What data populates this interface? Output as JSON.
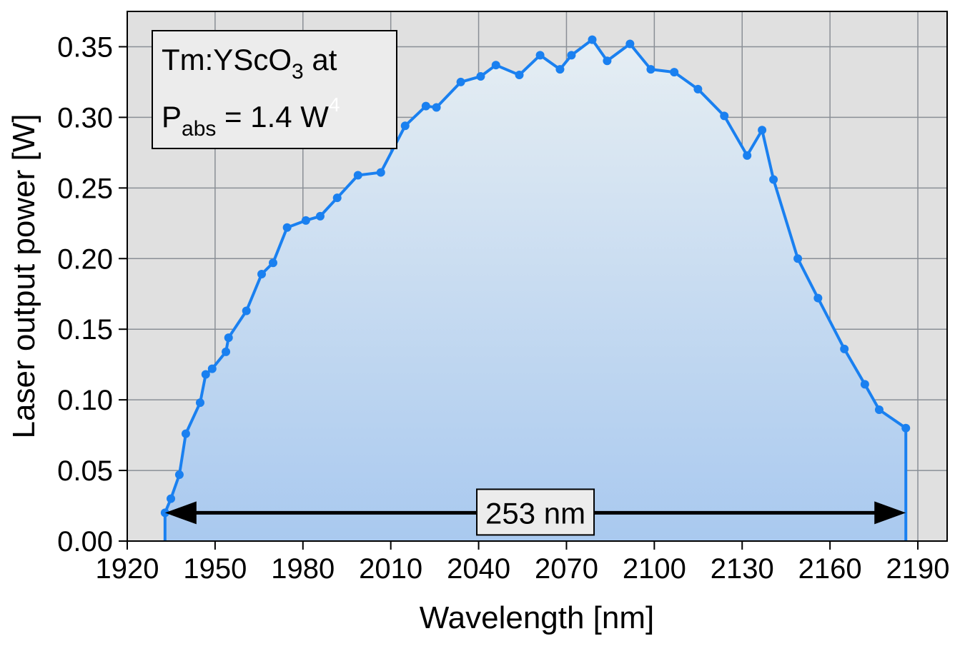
{
  "chart_data": {
    "type": "line",
    "xlabel": "Wavelength [nm]",
    "ylabel": "Laser output power [W]",
    "xlim": [
      1920,
      2200
    ],
    "ylim": [
      0,
      0.375
    ],
    "xticks": [
      1920,
      1950,
      1980,
      2010,
      2040,
      2070,
      2100,
      2130,
      2160,
      2190
    ],
    "yticks": [
      {
        "value": 0,
        "label": "0.00"
      },
      {
        "value": 0.05,
        "label": "0.05"
      },
      {
        "value": 0.1,
        "label": "0.10"
      },
      {
        "value": 0.15,
        "label": "0.15"
      },
      {
        "value": 0.2,
        "label": "0.20"
      },
      {
        "value": 0.25,
        "label": "0.25"
      },
      {
        "value": 0.3,
        "label": "0.30"
      },
      {
        "value": 0.35,
        "label": "0.35"
      }
    ],
    "grid": true,
    "x": [
      1932.9,
      1934.9,
      1937.8,
      1940.0,
      1944.9,
      1946.8,
      1949.0,
      1953.7,
      1954.6,
      1960.7,
      1965.9,
      1969.8,
      1974.6,
      1981.0,
      1985.9,
      1991.7,
      1998.8,
      2006.6,
      2014.9,
      2022.0,
      2025.6,
      2033.9,
      2040.7,
      2045.9,
      2053.9,
      2061.0,
      2067.8,
      2071.7,
      2078.8,
      2083.9,
      2091.7,
      2098.8,
      2106.8,
      2114.9,
      2123.9,
      2131.7,
      2136.8,
      2140.7,
      2149.0,
      2155.9,
      2164.9,
      2171.9,
      2176.8,
      2185.9
    ],
    "series": [
      {
        "color": "#1a80f0",
        "values": [
          0.02,
          0.03,
          0.047,
          0.076,
          0.098,
          0.118,
          0.122,
          0.134,
          0.144,
          0.163,
          0.189,
          0.197,
          0.222,
          0.227,
          0.23,
          0.243,
          0.259,
          0.261,
          0.294,
          0.308,
          0.307,
          0.325,
          0.329,
          0.337,
          0.33,
          0.344,
          0.334,
          0.344,
          0.355,
          0.34,
          0.352,
          0.334,
          0.332,
          0.32,
          0.301,
          0.273,
          0.291,
          0.256,
          0.2,
          0.172,
          0.136,
          0.111,
          0.093,
          0.08
        ]
      }
    ],
    "annotations": {
      "bandwidth": "253 nm",
      "legend_line1": [
        "Tm:YScO",
        "3",
        " at"
      ],
      "legend_line2": [
        "P",
        "abs",
        " = 1.4 W",
        "4"
      ]
    }
  }
}
